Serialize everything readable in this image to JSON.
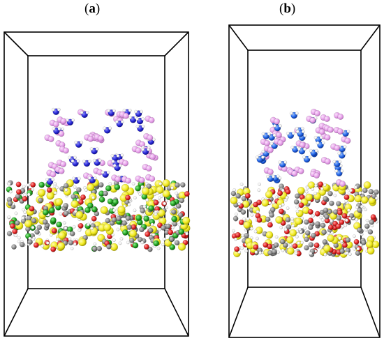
{
  "panels": [
    {
      "id": "a",
      "label_open": "(",
      "label_letter": "a",
      "label_close": ")"
    },
    {
      "id": "b",
      "label_open": "(",
      "label_letter": "b",
      "label_close": ")"
    }
  ],
  "colors": {
    "box_edge": "#000000",
    "pink_molecule": "#e7a0ea",
    "blue_molecule_a": "#2525d4",
    "blue_molecule_b": "#1f62e6",
    "hydrogen": "#ffffff",
    "sulfur": "#f2ec22",
    "carbon": "#8a8a8a",
    "oxygen": "#e02020",
    "chlorine": "#1fa01f"
  }
}
